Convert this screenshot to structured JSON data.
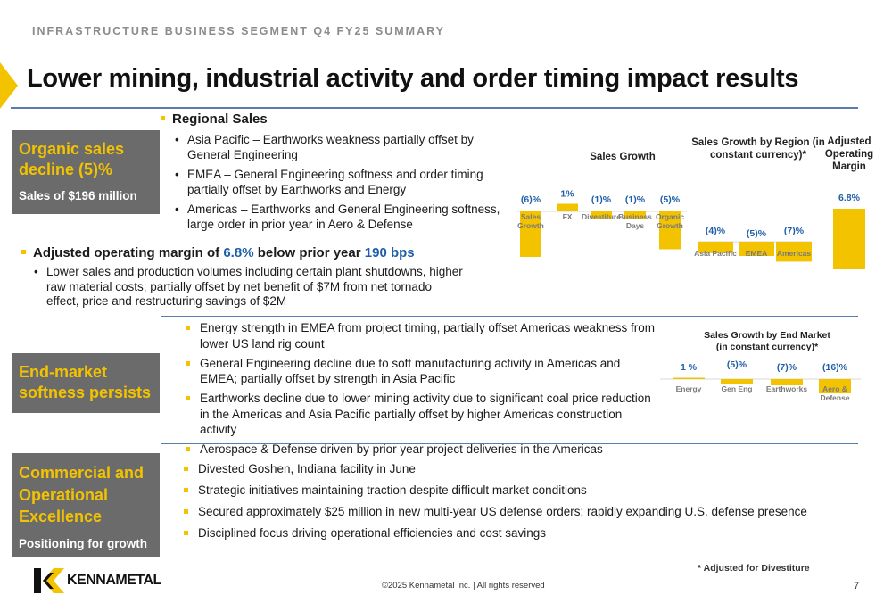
{
  "header": {
    "eyebrow": "INFRASTRUCTURE BUSINESS SEGMENT Q4 FY25 SUMMARY",
    "title": "Lower mining, industrial activity and order timing impact results"
  },
  "section1": {
    "box_title": "Organic sales decline (5)%",
    "box_sub": "Sales of $196 million",
    "regional_heading": "Regional Sales",
    "regional_items": [
      "Asia Pacific – Earthworks weakness partially offset by General Engineering",
      "EMEA – General Engineering softness and order timing partially offset by Earthworks and Energy",
      "Americas – Earthworks and General Engineering softness, large order in prior year in Aero & Defense"
    ],
    "margin_pre": "Adjusted operating margin of ",
    "margin_value": "6.8%",
    "margin_mid": " below prior year ",
    "margin_bps": "190 bps",
    "margin_detail": "Lower sales and production volumes including certain plant shutdowns, higher raw material costs; partially offset by net benefit of $7M from net tornado effect, price and restructuring savings of $2M"
  },
  "section2": {
    "box_title": "End-market softness persists",
    "items": [
      "Energy strength in EMEA from project timing, partially offset Americas weakness from lower US land rig count",
      "General Engineering decline due to soft manufacturing activity in Americas and EMEA; partially offset by strength in Asia Pacific",
      "Earthworks decline due to lower mining activity due to significant coal price reduction in the Americas and Asia Pacific partially offset by higher Americas construction activity",
      "Aerospace & Defense driven by prior year project deliveries in the Americas"
    ]
  },
  "section3": {
    "box_title": "Commercial and Operational Excellence",
    "box_sub": "Positioning for growth",
    "items": [
      "Divested Goshen, Indiana facility in June",
      "Strategic initiatives maintaining traction despite difficult market conditions",
      "Secured approximately $25 million in new multi-year US defense orders; rapidly expanding U.S. defense presence",
      "Disciplined focus driving operational efficiencies and cost savings"
    ]
  },
  "chart_data": [
    {
      "type": "bar",
      "title": "Sales Growth",
      "categories": [
        "Sales Growth",
        "FX",
        "Divestiture",
        "Business Days",
        "Organic Growth"
      ],
      "values": [
        -6,
        1,
        -1,
        -1,
        -5
      ],
      "labels": [
        "(6)%",
        "1%",
        "(1)%",
        "(1)%",
        "(5)%"
      ]
    },
    {
      "type": "bar",
      "title": "Sales Growth by Region (in constant currency)*",
      "categories": [
        "Asia Pacific",
        "EMEA",
        "Americas"
      ],
      "values": [
        -4,
        -5,
        -7
      ],
      "labels": [
        "(4)%",
        "(5)%",
        "(7)%"
      ]
    },
    {
      "type": "bar",
      "title": "Adjusted Operating Margin",
      "categories": [
        ""
      ],
      "values": [
        6.8
      ],
      "labels": [
        "6.8%"
      ]
    },
    {
      "type": "bar",
      "title": "Sales Growth by End Market (in constant currency)*",
      "categories": [
        "Energy",
        "Gen Eng",
        "Earthworks",
        "Aero & Defense"
      ],
      "values": [
        1,
        -5,
        -7,
        -16
      ],
      "labels": [
        "1 %",
        "(5)%",
        "(7)%",
        "(16)%"
      ]
    }
  ],
  "footer": {
    "note": "* Adjusted for Divestiture",
    "copyright": "©2025 Kennametal Inc.  |  All rights reserved",
    "page": "7",
    "logo_text": "KENNAMETAL"
  },
  "colors": {
    "accent": "#f3c300",
    "blue": "#1f5fa8",
    "box": "#6b6b6b",
    "rule": "#5a7db0"
  }
}
